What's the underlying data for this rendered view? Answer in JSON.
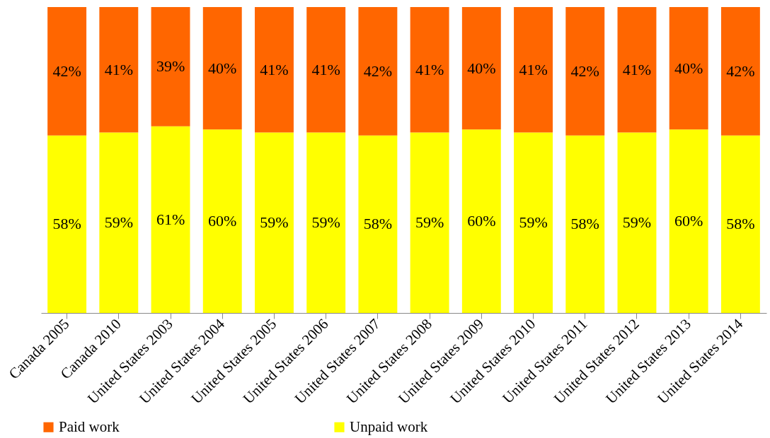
{
  "chart_data": {
    "type": "bar",
    "stacked": true,
    "categories": [
      "Canada 2005",
      "Canada 2010",
      "United States 2003",
      "United States 2004",
      "United States 2005",
      "United States 2006",
      "United States 2007",
      "United States 2008",
      "United States 2009",
      "United States 2010",
      "United States 2011",
      "United States 2012",
      "United States 2013",
      "United States 2014"
    ],
    "series": [
      {
        "name": "Unpaid work",
        "color": "#ffff00",
        "values": [
          58,
          59,
          61,
          60,
          59,
          59,
          58,
          59,
          60,
          59,
          58,
          59,
          60,
          58
        ],
        "value_labels": [
          "58%",
          "59%",
          "61%",
          "60%",
          "59%",
          "59%",
          "58%",
          "59%",
          "60%",
          "59%",
          "58%",
          "59%",
          "60%",
          "58%"
        ]
      },
      {
        "name": "Paid work",
        "color": "#ff6600",
        "values": [
          42,
          41,
          39,
          40,
          41,
          41,
          42,
          41,
          40,
          41,
          42,
          41,
          40,
          42
        ],
        "value_labels": [
          "42%",
          "41%",
          "39%",
          "40%",
          "41%",
          "41%",
          "42%",
          "41%",
          "40%",
          "41%",
          "42%",
          "41%",
          "40%",
          "42%"
        ]
      }
    ],
    "ylim": [
      0,
      100
    ],
    "tick_labels": "x",
    "legend": "bottom"
  }
}
